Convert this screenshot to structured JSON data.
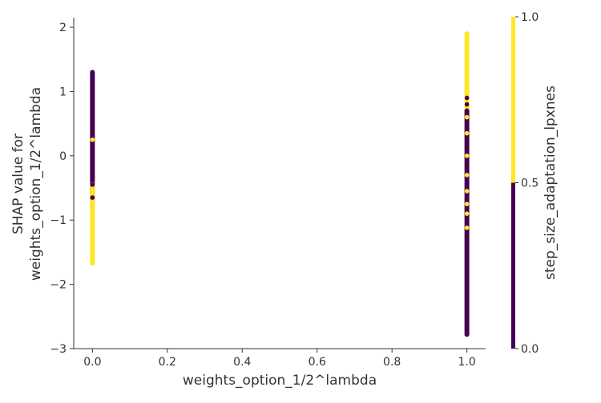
{
  "chart_data": {
    "type": "scatter",
    "title": "",
    "xlabel": "weights_option_1/2^lambda",
    "ylabel_lines": [
      "SHAP value for",
      "weights_option_1/2^lambda"
    ],
    "xlim": [
      -0.05,
      1.05
    ],
    "ylim": [
      -3.0,
      2.15
    ],
    "xticks": [
      0.0,
      0.2,
      0.4,
      0.6,
      0.8,
      1.0
    ],
    "xtick_labels": [
      "0.0",
      "0.2",
      "0.4",
      "0.6",
      "0.8",
      "1.0"
    ],
    "yticks": [
      -3,
      -2,
      -1,
      0,
      1,
      2
    ],
    "ytick_labels": [
      "−3",
      "−2",
      "−1",
      "0",
      "1",
      "2"
    ],
    "grid": false,
    "colors": {
      "low": "#440154",
      "high": "#fde725",
      "axis": "#333333"
    },
    "colorbar": {
      "label": "step_size_adaptation_lpxnes",
      "ticks": [
        0.0,
        0.5,
        1.0
      ],
      "tick_labels": [
        "0.0",
        "0.5",
        "1.0"
      ]
    },
    "segments": [
      {
        "x": 0.0,
        "y0": -0.7,
        "y1": 1.3,
        "color_value": 0
      },
      {
        "x": 0.0,
        "y0": -1.67,
        "y1": -0.45,
        "color_value": 1
      },
      {
        "x": 1.0,
        "y0": 0.7,
        "y1": 1.9,
        "color_value": 1
      },
      {
        "x": 1.0,
        "y0": -2.78,
        "y1": 0.7,
        "color_value": 0
      }
    ],
    "points": [
      {
        "x": 0.0,
        "y": 0.25,
        "color_value": 1
      },
      {
        "x": 0.0,
        "y": -0.6,
        "color_value": 1
      },
      {
        "x": 0.0,
        "y": -0.45,
        "color_value": 0
      },
      {
        "x": 0.0,
        "y": -0.65,
        "color_value": 0
      },
      {
        "x": 1.0,
        "y": 0.6,
        "color_value": 1
      },
      {
        "x": 1.0,
        "y": 0.35,
        "color_value": 1
      },
      {
        "x": 1.0,
        "y": 0.0,
        "color_value": 1
      },
      {
        "x": 1.0,
        "y": -0.3,
        "color_value": 1
      },
      {
        "x": 1.0,
        "y": -0.55,
        "color_value": 1
      },
      {
        "x": 1.0,
        "y": -0.75,
        "color_value": 1
      },
      {
        "x": 1.0,
        "y": -0.9,
        "color_value": 1
      },
      {
        "x": 1.0,
        "y": -1.12,
        "color_value": 1
      },
      {
        "x": 1.0,
        "y": 0.9,
        "color_value": 0
      },
      {
        "x": 1.0,
        "y": 0.8,
        "color_value": 0
      },
      {
        "x": 1.0,
        "y": 0.7,
        "color_value": 0
      }
    ]
  }
}
